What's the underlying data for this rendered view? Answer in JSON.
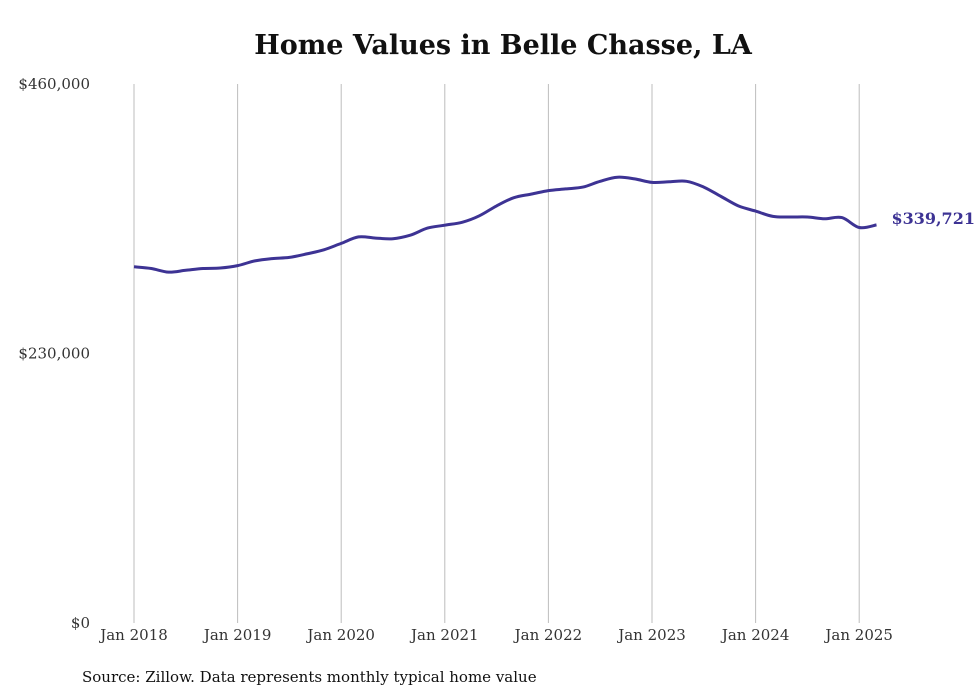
{
  "chart_data": {
    "type": "line",
    "title": "Home Values in Belle Chasse, LA",
    "xlabel": "",
    "ylabel": "",
    "ylim": [
      0,
      460000
    ],
    "xlim": [
      "2018-01",
      "2025-12"
    ],
    "grid": "vertical",
    "legend": "none",
    "y_ticks": [
      {
        "value": 460000,
        "label": "$460,000"
      },
      {
        "value": 230000,
        "label": "$230,000"
      },
      {
        "value": 0,
        "label": "$0"
      }
    ],
    "x_ticks": [
      {
        "value": "2018-01",
        "label": "Jan 2018"
      },
      {
        "value": "2019-01",
        "label": "Jan 2019"
      },
      {
        "value": "2020-01",
        "label": "Jan 2020"
      },
      {
        "value": "2021-01",
        "label": "Jan 2021"
      },
      {
        "value": "2022-01",
        "label": "Jan 2022"
      },
      {
        "value": "2023-01",
        "label": "Jan 2023"
      },
      {
        "value": "2024-01",
        "label": "Jan 2024"
      },
      {
        "value": "2025-01",
        "label": "Jan 2025"
      }
    ],
    "series": [
      {
        "color": "#3d3394",
        "end_label": "$339,721",
        "points": [
          [
            "2018-01",
            304000
          ],
          [
            "2018-03",
            302500
          ],
          [
            "2018-05",
            299500
          ],
          [
            "2018-07",
            301000
          ],
          [
            "2018-09",
            302500
          ],
          [
            "2018-11",
            303000
          ],
          [
            "2019-01",
            305000
          ],
          [
            "2019-03",
            309000
          ],
          [
            "2019-05",
            311000
          ],
          [
            "2019-07",
            312000
          ],
          [
            "2019-09",
            315000
          ],
          [
            "2019-11",
            318500
          ],
          [
            "2020-01",
            324000
          ],
          [
            "2020-03",
            329500
          ],
          [
            "2020-05",
            328500
          ],
          [
            "2020-07",
            328000
          ],
          [
            "2020-09",
            331000
          ],
          [
            "2020-11",
            337000
          ],
          [
            "2021-01",
            339500
          ],
          [
            "2021-03",
            342000
          ],
          [
            "2021-05",
            347500
          ],
          [
            "2021-07",
            356000
          ],
          [
            "2021-09",
            363000
          ],
          [
            "2021-11",
            366000
          ],
          [
            "2022-01",
            369000
          ],
          [
            "2022-03",
            370500
          ],
          [
            "2022-05",
            372000
          ],
          [
            "2022-07",
            377000
          ],
          [
            "2022-09",
            380500
          ],
          [
            "2022-11",
            379000
          ],
          [
            "2023-01",
            376000
          ],
          [
            "2023-03",
            376500
          ],
          [
            "2023-05",
            377000
          ],
          [
            "2023-07",
            372000
          ],
          [
            "2023-09",
            364000
          ],
          [
            "2023-11",
            356000
          ],
          [
            "2024-01",
            351500
          ],
          [
            "2024-03",
            347000
          ],
          [
            "2024-05",
            346500
          ],
          [
            "2024-07",
            346500
          ],
          [
            "2024-09",
            345000
          ],
          [
            "2024-11",
            346000
          ],
          [
            "2025-01",
            337500
          ],
          [
            "2025-03",
            339721
          ]
        ]
      }
    ],
    "source": "Source: Zillow. Data represents monthly typical home value"
  }
}
